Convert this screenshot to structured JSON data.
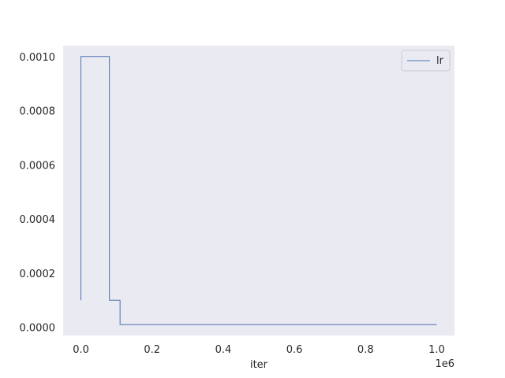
{
  "chart_data": {
    "type": "line",
    "line_style": "step",
    "xlabel": "iter",
    "x_offset_label": "1e6",
    "xlim": [
      -0.05,
      1.05
    ],
    "ylim": [
      -3e-05,
      0.00104
    ],
    "x_ticks": [
      0.0,
      0.2,
      0.4,
      0.6,
      0.8,
      1.0
    ],
    "x_tick_labels": [
      "0.0",
      "0.2",
      "0.4",
      "0.6",
      "0.8",
      "1.0"
    ],
    "y_ticks": [
      0.0,
      0.0002,
      0.0004,
      0.0006,
      0.0008,
      0.001
    ],
    "y_tick_labels": [
      "0.0000",
      "0.0002",
      "0.0004",
      "0.0006",
      "0.0008",
      "0.0010"
    ],
    "grid": false,
    "legend_position": "top-right",
    "background_color": "#eaeaf2",
    "series": [
      {
        "name": "lr",
        "color": "#4c72b0",
        "x": [
          0.0,
          0.0,
          0.08,
          0.08,
          0.11,
          0.11,
          1.0
        ],
        "y": [
          0.0001,
          0.001,
          0.001,
          0.0001,
          0.0001,
          1e-05,
          1e-05
        ]
      }
    ]
  }
}
